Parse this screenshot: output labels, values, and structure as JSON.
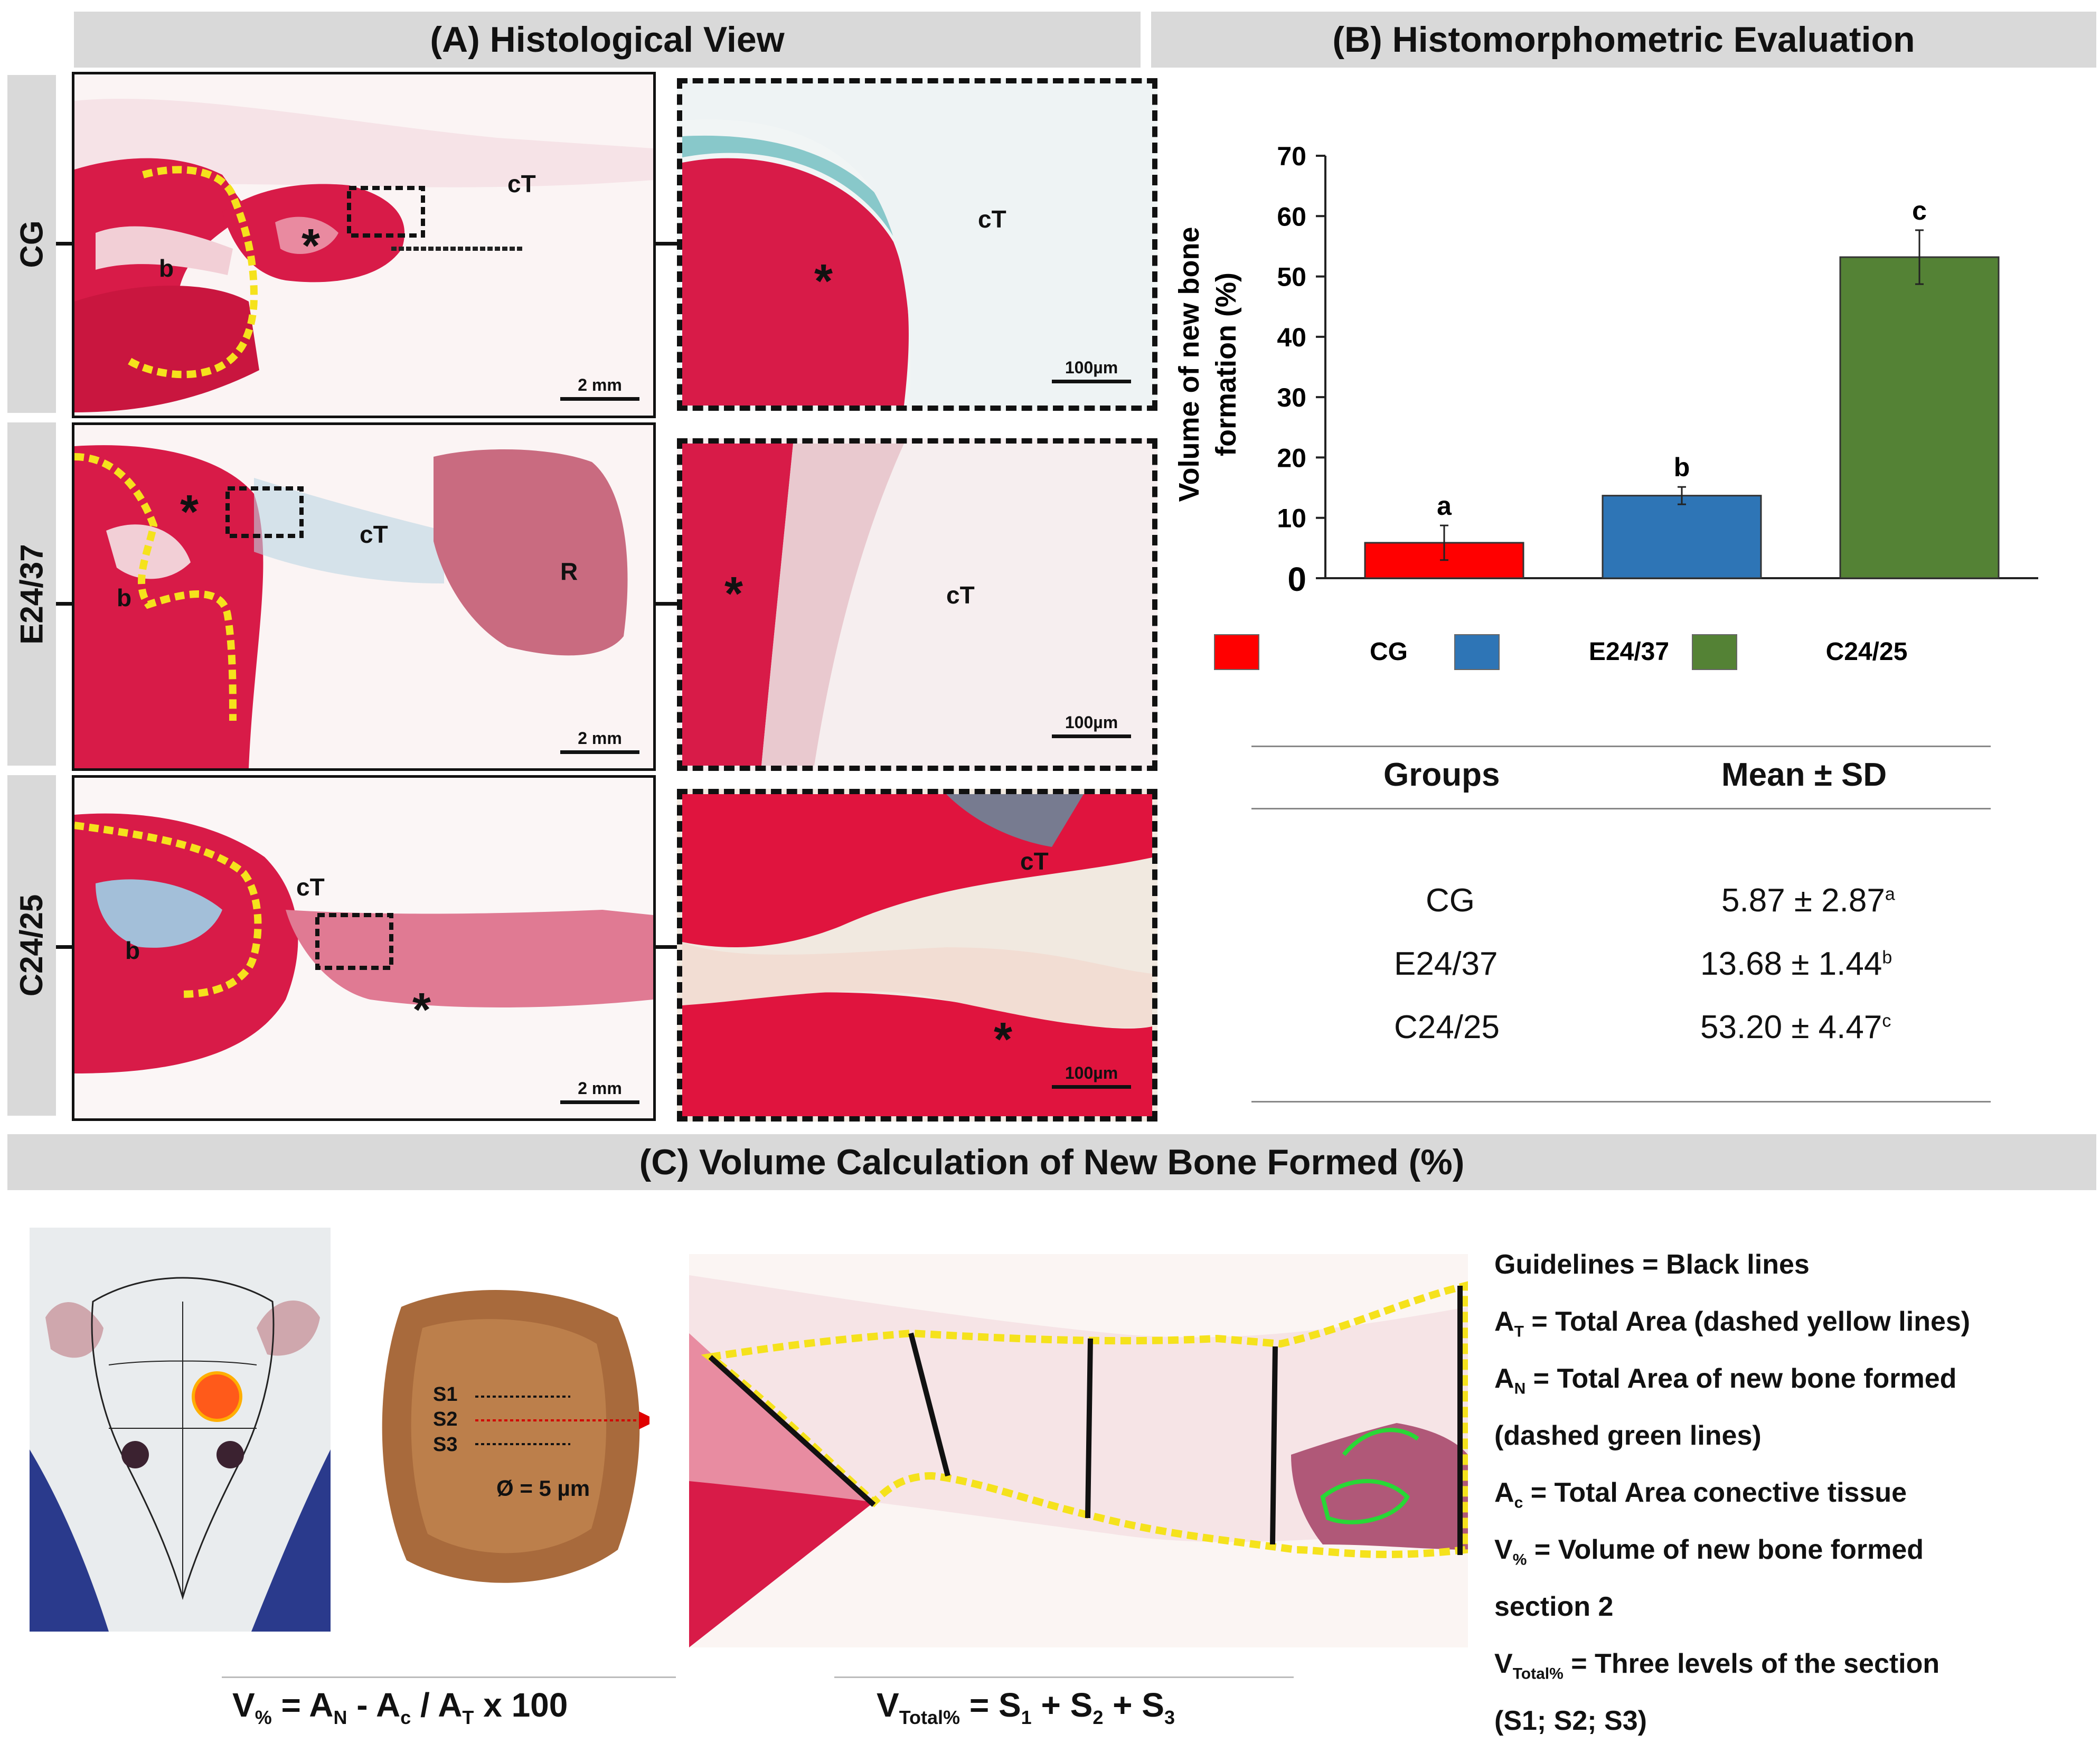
{
  "panel_a": {
    "title": "(A) Histological View",
    "rows": [
      {
        "label": "CG",
        "overview_labels": {
          "cT": "cT",
          "b": "b",
          "star": "*"
        },
        "scale_overview": "2 mm",
        "zoom_labels": {
          "cT": "cT",
          "star": "*"
        },
        "scale_zoom": "100µm"
      },
      {
        "label": "E24/37",
        "overview_labels": {
          "cT": "cT",
          "b": "b",
          "star": "*",
          "R": "R"
        },
        "scale_overview": "2 mm",
        "zoom_labels": {
          "cT": "cT",
          "star": "*"
        },
        "scale_zoom": "100µm"
      },
      {
        "label": "C24/25",
        "overview_labels": {
          "cT": "cT",
          "b": "b",
          "star": "*"
        },
        "scale_overview": "2 mm",
        "zoom_labels": {
          "cT": "cT",
          "star": "*"
        },
        "scale_zoom": "100µm"
      }
    ]
  },
  "panel_b": {
    "title": "(B) Histomorphometric Evaluation",
    "table": {
      "headers": [
        "Groups",
        "Mean ± SD"
      ],
      "rows": [
        {
          "group": "CG",
          "value": "5.87 ± 2.87",
          "sup": "a"
        },
        {
          "group": "E24/37",
          "value": "13.68 ± 1.44",
          "sup": "b"
        },
        {
          "group": "C24/25",
          "value": "53.20 ± 4.47",
          "sup": "c"
        }
      ]
    }
  },
  "chart_data": {
    "type": "bar",
    "title": "",
    "xlabel": "",
    "ylabel": "Volume of new bone formation (%)",
    "ylabel_lines": [
      "Volume of new bone",
      "formation (%)"
    ],
    "categories": [
      "CG",
      "E24/37",
      "C24/25"
    ],
    "values": [
      5.87,
      13.68,
      53.2
    ],
    "errors": [
      2.87,
      1.44,
      4.47
    ],
    "significance": [
      "a",
      "b",
      "c"
    ],
    "colors": [
      "#ff0000",
      "#2e75b6",
      "#548235"
    ],
    "ylim": [
      0,
      70
    ],
    "yticks": [
      "0",
      "10",
      "20",
      "30",
      "40",
      "50",
      "60",
      "70"
    ],
    "legend": [
      "CG",
      "E24/37",
      "C24/25"
    ],
    "legend_position": "bottom"
  },
  "panel_c": {
    "title": "(C) Volume Calculation of New Bone Formed (%)",
    "specimen_labels": {
      "s1": "S1",
      "s2": "S2",
      "s3": "S3",
      "diameter": "Ø = 5 µm"
    },
    "formula_left": {
      "a": "V",
      "a_sub": "%",
      "b": " = A",
      "b_sub": "N",
      "c": " - A",
      "c_sub": "c",
      "d": " / A",
      "d_sub": "T",
      "e": " x 100"
    },
    "formula_right": {
      "a": "V",
      "a_sub": "Total%",
      "b": " = S",
      "b_sub": "1",
      "c": " + S",
      "c_sub": "2",
      "d": " + S",
      "d_sub": "3"
    },
    "guidelines": [
      {
        "sym": "",
        "sub": "",
        "text": "Guidelines = Black lines"
      },
      {
        "sym": "A",
        "sub": "T",
        "text": " = Total Area (dashed yellow lines)"
      },
      {
        "sym": "A",
        "sub": "N",
        "text": " = Total Area of new bone formed"
      },
      {
        "sym": "",
        "sub": "",
        "text": "(dashed green lines)"
      },
      {
        "sym": "A",
        "sub": "c",
        "text": " = Total Area conective tissue"
      },
      {
        "sym": "V",
        "sub": "%",
        "text": " = Volume of new bone formed"
      },
      {
        "sym": "",
        "sub": "",
        "text": "section 2"
      },
      {
        "sym": "V",
        "sub": "Total%",
        "text": " = Three levels of the section"
      },
      {
        "sym": "",
        "sub": "",
        "text": "(S1; S2; S3)"
      }
    ]
  }
}
